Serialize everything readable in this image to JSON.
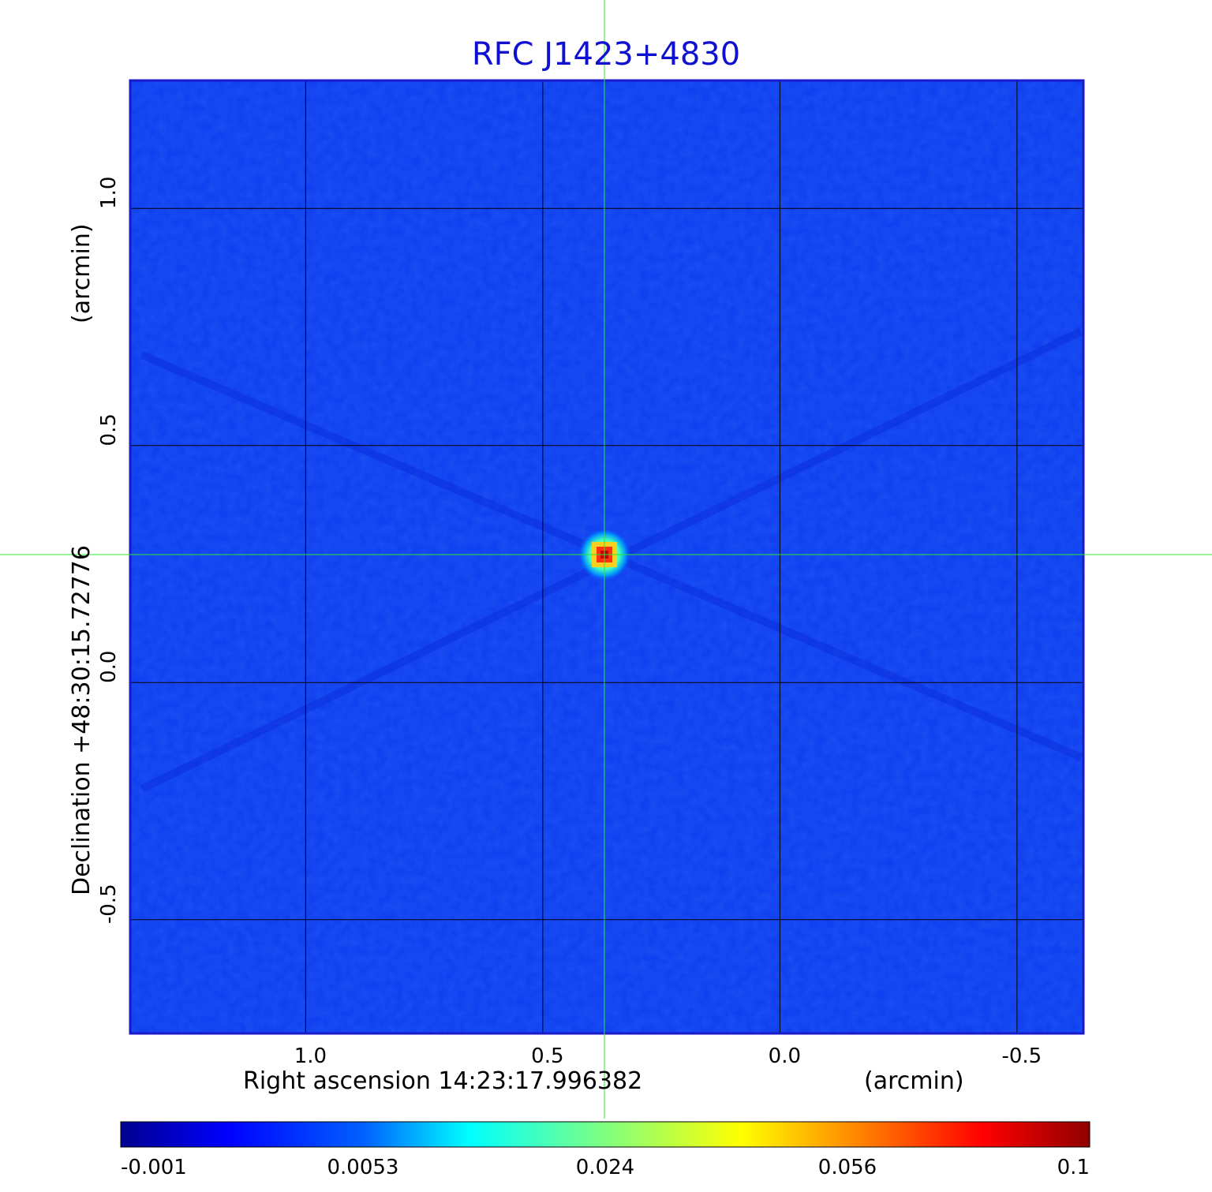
{
  "chart_data": {
    "type": "heatmap",
    "title": "RFC J1423+4830",
    "xlabel": "Right ascension  14:23:17.996382",
    "xunit": "(arcmin)",
    "ylabel": "Declination  +48:30:15.72776",
    "yunit": "(arcmin)",
    "x_ticks": [
      "1.0",
      "0.5",
      "0.0",
      "-0.5"
    ],
    "x_tick_values": [
      1.0,
      0.5,
      0.0,
      -0.5
    ],
    "y_ticks": [
      "1.0",
      "0.5",
      "0.0",
      "-0.5"
    ],
    "y_tick_values": [
      1.0,
      0.5,
      0.0,
      -0.5
    ],
    "xlim": [
      1.37,
      -0.64
    ],
    "ylim": [
      -0.74,
      1.27
    ],
    "grid": true,
    "x_reversed": true,
    "source": {
      "x": 0.37,
      "y": 0.27,
      "peak": 0.1
    },
    "crosshair": {
      "x": 0.37,
      "y": 0.27
    },
    "colorbar": {
      "ticks": [
        "-0.001",
        "0.0053",
        "0.024",
        "0.056",
        "0.1"
      ],
      "scale": "nonlinear",
      "colormap": "jet"
    }
  },
  "colors": {
    "title": "#1010d0",
    "frame": "#1a1acc",
    "background_map": "#1040f0",
    "crosshair": "#2ee82e"
  }
}
